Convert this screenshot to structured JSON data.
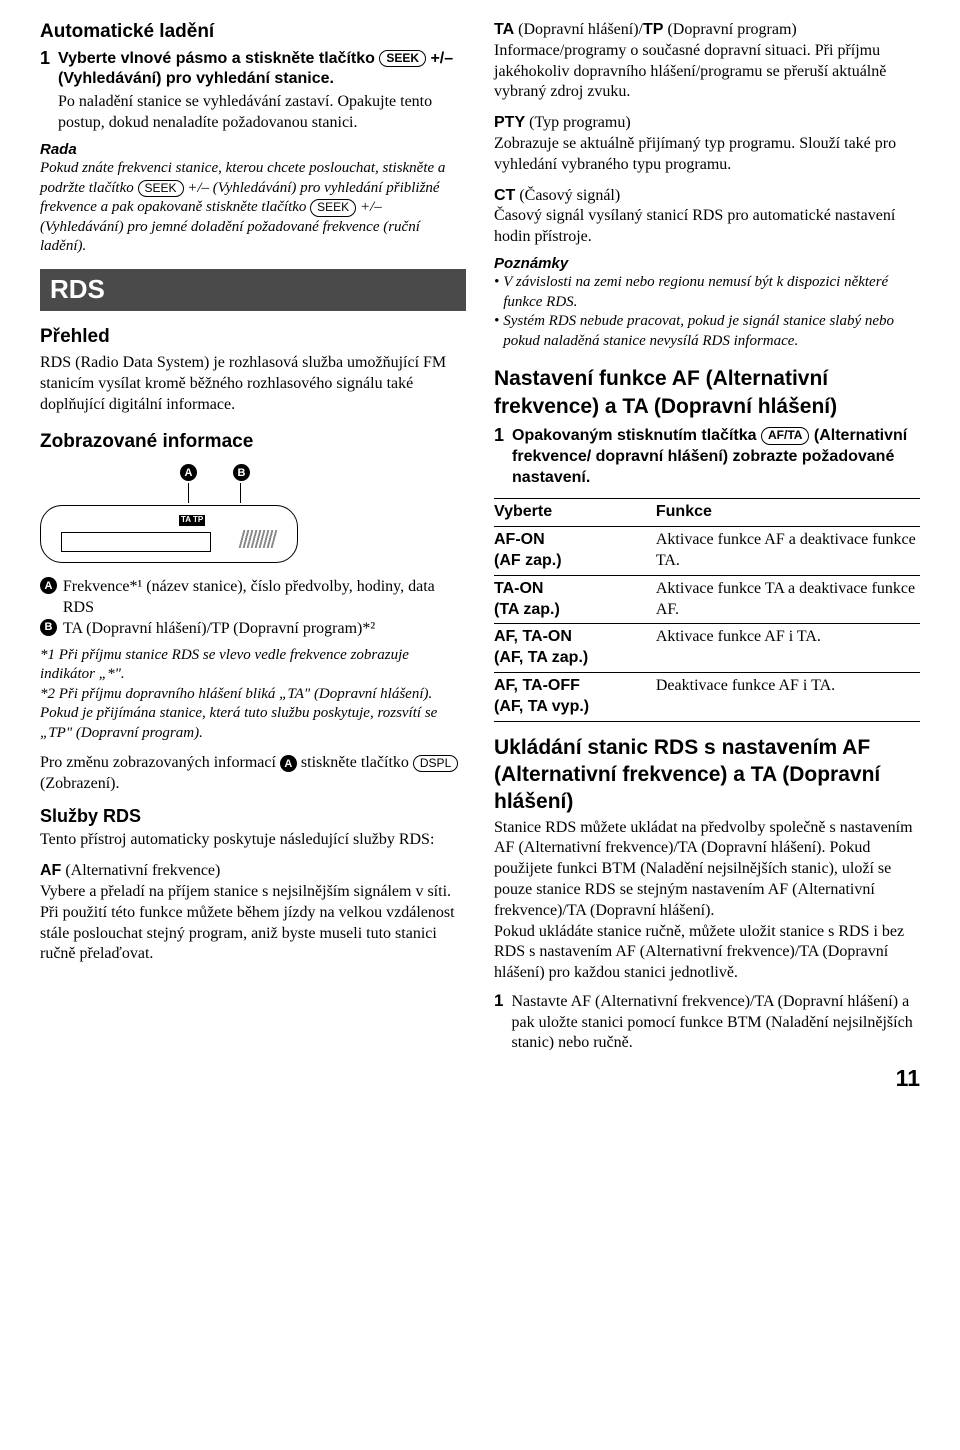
{
  "left": {
    "h1": "Automatické ladění",
    "step1_num": "1",
    "step1_txt_a": "Vyberte vlnové pásmo a stiskněte tlačítko ",
    "step1_btn": "SEEK",
    "step1_txt_b": " +/– (Vyhledávání) pro vyhledání stanice.",
    "step1_p1": "Po naladění stanice se vyhledávání zastaví. Opakujte tento postup, dokud nenaladíte požadovanou stanici.",
    "tip_head": "Rada",
    "tip_txt_a": "Pokud znáte frekvenci stanice, kterou chcete poslouchat, stiskněte a podržte tlačítko ",
    "tip_btn1": "SEEK",
    "tip_txt_b": " +/– (Vyhledávání) pro vyhledání přibližné frekvence a pak opakovaně stiskněte tlačítko ",
    "tip_btn2": "SEEK",
    "tip_txt_c": " +/– (Vyhledávání) pro jemné doladění požadované frekvence (ruční ladění).",
    "rds_box": "RDS",
    "h2_overview": "Přehled",
    "overview_p": "RDS (Radio Data System) je rozhlasová služba umožňující FM stanicím vysílat kromě běžného rozhlasového signálu také doplňující digitální informace.",
    "h2_display": "Zobrazované informace",
    "labelA": "A",
    "labelB": "B",
    "tatp": "TA TP",
    "list_a": " Frekvence*¹ (název stanice), číslo předvolby, hodiny, data RDS",
    "list_b": " TA (Dopravní hlášení)/TP (Dopravní program)*²",
    "fn1": "*1 Při příjmu stanice RDS se vlevo vedle frekvence zobrazuje indikátor „*\".",
    "fn2": "*2 Při příjmu dopravního hlášení bliká „TA\" (Dopravní hlášení). Pokud je přijímána stanice, která tuto službu poskytuje, rozsvítí se „TP\" (Dopravní program).",
    "change_a": "Pro změnu zobrazovaných informací ",
    "change_b": " stiskněte tlačítko ",
    "change_btn": "DSPL",
    "change_c": " (Zobrazení).",
    "h2_services": "Služby RDS",
    "services_p": "Tento přístroj automaticky poskytuje následující služby RDS:",
    "af_head": "AF",
    "af_head2": " (Alternativní frekvence)",
    "af_p": "Vybere a přeladí na příjem stanice s nejsilnějším signálem v síti. Při použití této funkce můžete během jízdy na velkou vzdálenost stále poslouchat stejný program, aniž byste museli tuto stanici ručně přelaďovat."
  },
  "right": {
    "ta_head_a": "TA",
    "ta_head_b": " (Dopravní hlášení)/",
    "ta_head_c": "TP",
    "ta_head_d": " (Dopravní program)",
    "ta_p": "Informace/programy o současné dopravní situaci. Při příjmu jakéhokoliv dopravního hlášení/programu se přeruší aktuálně vybraný zdroj zvuku.",
    "pty_head_a": "PTY",
    "pty_head_b": " (Typ programu)",
    "pty_p": "Zobrazuje se aktuálně přijímaný typ programu. Slouží také pro vyhledání vybraného typu programu.",
    "ct_head_a": "CT",
    "ct_head_b": " (Časový signál)",
    "ct_p": "Časový signál vysílaný stanicí RDS pro automatické nastavení hodin přístroje.",
    "notes_head": "Poznámky",
    "note1": "V závislosti na zemi nebo regionu nemusí být k dispozici některé funkce RDS.",
    "note2": "Systém RDS nebude pracovat, pokud je signál stanice slabý nebo pokud naladěná stanice nevysílá RDS informace.",
    "h2_afta": "Nastavení funkce AF (Alternativní frekvence) a TA (Dopravní hlášení)",
    "step1_num": "1",
    "step1_txt_a": "Opakovaným stisknutím tlačítka ",
    "step1_btn": "AF/TA",
    "step1_txt_b": " (Alternativní frekvence/ dopravní hlášení) zobrazte požadované nastavení.",
    "table": {
      "col1": "Vyberte",
      "col2": "Funkce",
      "rows": [
        [
          "AF-ON\n(AF zap.)",
          "Aktivace funkce AF a deaktivace funkce TA."
        ],
        [
          "TA-ON\n(TA zap.)",
          "Aktivace funkce TA a deaktivace funkce AF."
        ],
        [
          "AF, TA-ON\n(AF, TA zap.)",
          "Aktivace funkce AF i TA."
        ],
        [
          "AF, TA-OFF\n(AF, TA vyp.)",
          "Deaktivace funkce AF i TA."
        ]
      ]
    },
    "h2_store": "Ukládání stanic RDS s nastavením AF (Alternativní frekvence) a TA (Dopravní hlášení)",
    "store_p1": "Stanice RDS můžete ukládat na předvolby společně s nastavením AF (Alternativní frekvence)/TA (Dopravní hlášení). Pokud použijete funkci BTM (Naladění nejsilnějších stanic), uloží se pouze stanice RDS se stejným nastavením AF (Alternativní frekvence)/TA (Dopravní hlášení).",
    "store_p2": "Pokud ukládáte stanice ručně, můžete uložit stanice s RDS i bez RDS s nastavením AF (Alternativní frekvence)/TA (Dopravní hlášení) pro každou stanici jednotlivě.",
    "store_step_num": "1",
    "store_step_txt": "Nastavte AF (Alternativní frekvence)/TA (Dopravní hlášení) a pak uložte stanici pomocí funkce BTM (Naladění nejsilnějších stanic) nebo ručně.",
    "page_num": "11"
  }
}
